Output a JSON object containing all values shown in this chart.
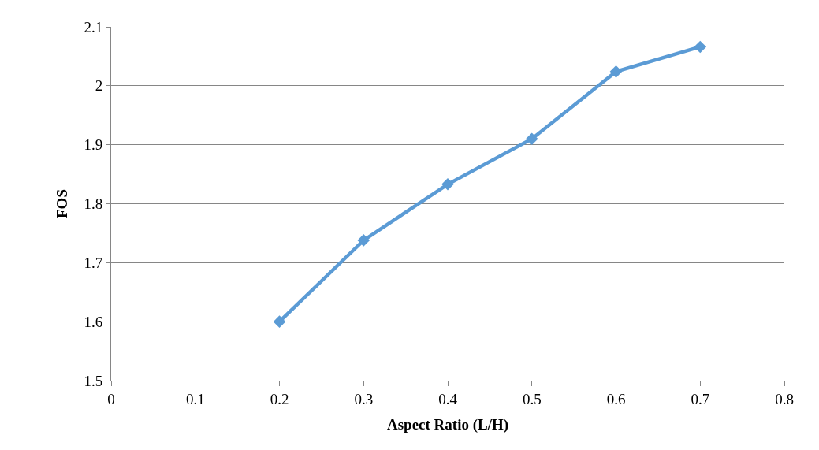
{
  "chart_data": {
    "type": "line",
    "xlabel": "Aspect Ratio (L/H)",
    "ylabel": "FOS",
    "x": [
      0.2,
      0.3,
      0.4,
      0.5,
      0.6,
      0.7
    ],
    "series": [
      {
        "color": "#5b9bd5",
        "values": [
          1.6,
          1.738,
          1.833,
          1.91,
          2.024,
          2.066
        ]
      }
    ],
    "xlim": [
      0,
      0.8
    ],
    "xticks": [
      0,
      0.1,
      0.2,
      0.3,
      0.4,
      0.5,
      0.6,
      0.7,
      0.8
    ],
    "ylim": [
      1.5,
      2.1
    ],
    "yticks": [
      1.5,
      1.6,
      1.7,
      1.8,
      1.9,
      2,
      2.1
    ],
    "grid": "y",
    "marker": "diamond",
    "line_style": "solid"
  }
}
